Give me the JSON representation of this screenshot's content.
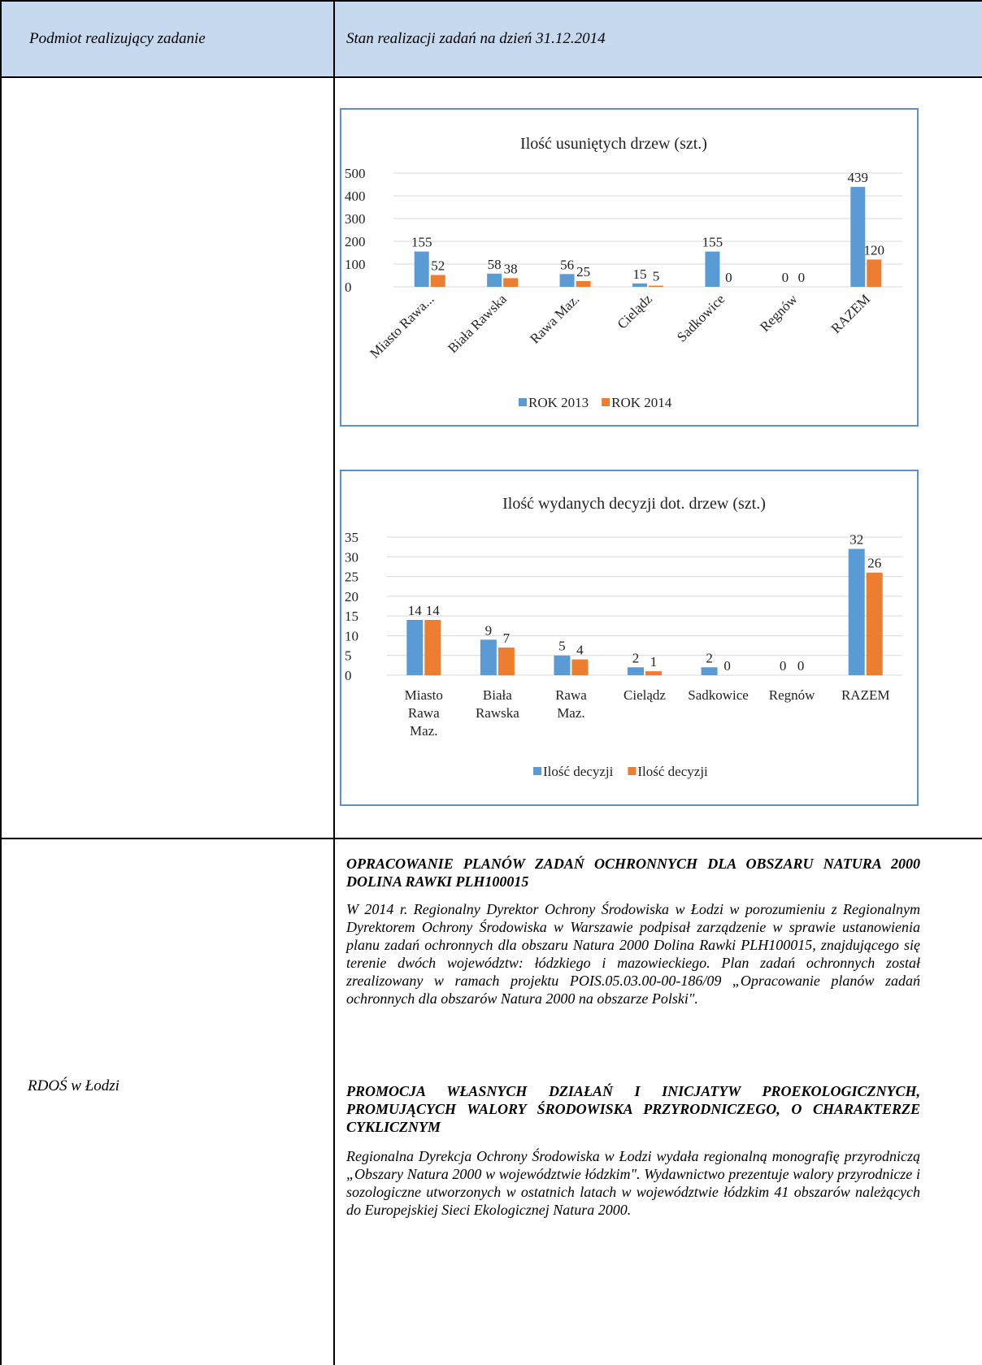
{
  "header": {
    "col1": "Podmiot realizujący zadanie",
    "col2": "Stan realizacji zadań na dzień 31.12.2014"
  },
  "colors": {
    "header_bg": "#c6d9ef",
    "series1": "#5b9bd5",
    "series2": "#ed7d31",
    "chart_border": "#5b8fd0"
  },
  "chart_data": [
    {
      "type": "bar",
      "title": "Ilość usuniętych drzew (szt.)",
      "categories": [
        "Miasto Rawa...",
        "Biała Rawska",
        "Rawa Maz.",
        "Cielądz",
        "Sadkowice",
        "Regnów",
        "RAZEM"
      ],
      "series": [
        {
          "name": "ROK 2013",
          "values": [
            155,
            58,
            56,
            15,
            155,
            0,
            439
          ]
        },
        {
          "name": "ROK 2014",
          "values": [
            52,
            38,
            25,
            5,
            0,
            0,
            120
          ]
        }
      ],
      "y_ticks": [
        "500",
        "400",
        "300",
        "200",
        "100",
        "0"
      ],
      "ylim": [
        0,
        500
      ],
      "grid": true,
      "legend": "bottom",
      "category_labels_rotated": true
    },
    {
      "type": "bar",
      "title": "Ilość wydanych decyzji dot. drzew (szt.)",
      "categories": [
        [
          "Miasto",
          "Rawa",
          "Maz."
        ],
        [
          "Biała",
          "Rawska"
        ],
        [
          "Rawa",
          "Maz."
        ],
        [
          "Cielądz"
        ],
        [
          "Sadkowice"
        ],
        [
          "Regnów"
        ],
        [
          "RAZEM"
        ]
      ],
      "series": [
        {
          "name": "Ilość decyzji",
          "values": [
            14,
            9,
            5,
            2,
            2,
            0,
            32
          ]
        },
        {
          "name": "Ilość decyzji",
          "values": [
            14,
            7,
            4,
            1,
            0,
            0,
            26
          ]
        }
      ],
      "y_ticks": [
        "35",
        "30",
        "25",
        "20",
        "15",
        "10",
        "5",
        "0"
      ],
      "ylim": [
        0,
        35
      ],
      "grid": true,
      "legend": "bottom",
      "category_labels_rotated": false
    }
  ],
  "row2": {
    "left": "RDOŚ w Łodzi",
    "heading1": "OPRACOWANIE PLANÓW ZADAŃ OCHRONNYCH DLA OBSZARU NATURA 2000 DOLINA RAWKI PLH100015",
    "para1": "W 2014 r. Regionalny Dyrektor Ochrony Środowiska w Łodzi w porozumieniu z Regionalnym Dyrektorem Ochrony Środowiska w Warszawie podpisał zarządzenie w sprawie ustanowienia planu zadań ochronnych dla obszaru Natura 2000 Dolina Rawki PLH100015, znajdującego się terenie dwóch województw: łódzkiego i mazowieckiego. Plan zadań ochronnych został zrealizowany w ramach projektu POIS.05.03.00-00-186/09 „Opracowanie planów zadań ochronnych dla obszarów Natura 2000 na obszarze Polski\".",
    "heading2": "PROMOCJA WŁASNYCH DZIAŁAŃ I INICJATYW PROEKOLOGICZNYCH, PROMUJĄCYCH WALORY ŚRODOWISKA PRZYRODNICZEGO, O CHARAKTERZE CYKLICZNYM",
    "para2": "Regionalna Dyrekcja Ochrony Środowiska w Łodzi wydała regionalną monografię przyrodniczą „Obszary Natura 2000 w województwie łódzkim\". Wydawnictwo prezentuje walory przyrodnicze i sozologiczne utworzonych w ostatnich latach w województwie łódzkim 41 obszarów należących do Europejskiej Sieci Ekologicznej Natura 2000."
  }
}
